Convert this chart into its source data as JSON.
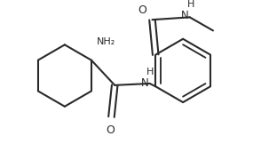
{
  "background_color": "#ffffff",
  "line_color": "#2a2a2a",
  "line_width": 1.5,
  "text_color": "#2a2a2a",
  "figsize": [
    2.94,
    1.62
  ],
  "dpi": 100,
  "xlim": [
    0,
    294
  ],
  "ylim": [
    0,
    162
  ]
}
